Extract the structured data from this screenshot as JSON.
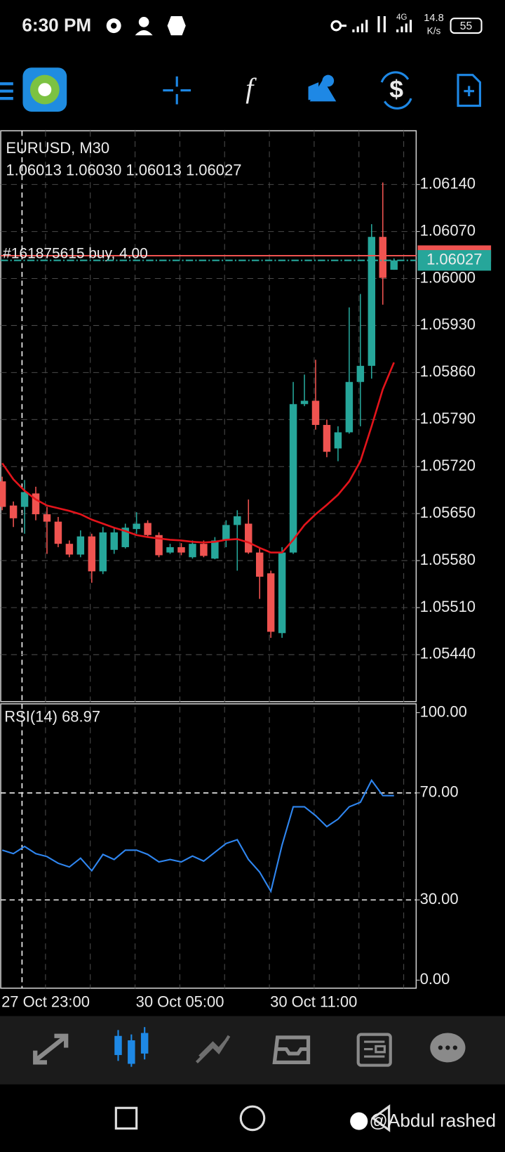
{
  "status_bar": {
    "time": "6:30 PM",
    "network": "4G",
    "speed": "14.8",
    "speed_unit": "K/s",
    "battery": "55"
  },
  "chart_data": [
    {
      "type": "candlestick",
      "title": "EURUSD, M30",
      "subtitle": "1.06013 1.06030 1.06013 1.06027",
      "categories": [
        "27 Oct 23:00",
        null,
        null,
        null,
        null,
        null,
        null,
        null,
        null,
        null,
        null,
        null,
        "30 Oct 05:00",
        null,
        null,
        null,
        null,
        null,
        null,
        null,
        null,
        null,
        null,
        null,
        "30 Oct 11:00",
        null,
        null,
        null,
        null,
        null,
        null,
        null,
        null,
        null,
        null,
        null
      ],
      "open": [
        1.05698,
        1.05662,
        1.0566,
        1.0568,
        1.05649,
        1.05638,
        1.05605,
        1.05589,
        1.05616,
        1.05564,
        1.05596,
        1.056,
        1.05627,
        1.05636,
        1.05618,
        1.05592,
        1.056,
        1.05585,
        1.05605,
        1.05583,
        1.0561,
        1.05633,
        1.05635,
        1.05592,
        1.05561,
        1.05472,
        1.05592,
        1.05813,
        1.05818,
        1.05782,
        1.05747,
        1.05771,
        1.05846,
        1.0587,
        1.06062,
        1.06013
      ],
      "high": [
        1.05705,
        1.05668,
        1.057,
        1.0569,
        1.0566,
        1.05645,
        1.0561,
        1.05625,
        1.0562,
        1.0563,
        1.0563,
        1.05635,
        1.05652,
        1.0564,
        1.05622,
        1.05605,
        1.05606,
        1.0561,
        1.0561,
        1.05615,
        1.0564,
        1.05655,
        1.05671,
        1.056,
        1.05565,
        1.056,
        1.05846,
        1.05857,
        1.05879,
        1.0579,
        1.0578,
        1.05957,
        1.05977,
        1.06081,
        1.06143,
        1.0603
      ],
      "low": [
        1.05655,
        1.0563,
        1.0562,
        1.0564,
        1.0559,
        1.056,
        1.05585,
        1.05585,
        1.05547,
        1.0556,
        1.0559,
        1.05598,
        1.0562,
        1.05615,
        1.05585,
        1.0559,
        1.05588,
        1.05583,
        1.05585,
        1.05582,
        1.056,
        1.05565,
        1.0559,
        1.05523,
        1.05465,
        1.05465,
        1.0559,
        1.0581,
        1.05775,
        1.05734,
        1.05728,
        1.05769,
        1.0578,
        1.05851,
        1.05961,
        1.06013
      ],
      "close": [
        1.0566,
        1.05643,
        1.05682,
        1.05649,
        1.05638,
        1.05605,
        1.05589,
        1.05616,
        1.05564,
        1.05622,
        1.05622,
        1.05629,
        1.05635,
        1.05618,
        1.05588,
        1.056,
        1.05592,
        1.05605,
        1.05587,
        1.0561,
        1.05633,
        1.05646,
        1.05592,
        1.05556,
        1.05474,
        1.05592,
        1.05813,
        1.05818,
        1.05782,
        1.05742,
        1.05771,
        1.05846,
        1.0587,
        1.06062,
        1.06001,
        1.06027
      ],
      "up_color": "#26a69a",
      "down_color": "#ef5350",
      "ma": {
        "color": "#e3141b",
        "values": [
          1.05725,
          1.05701,
          1.05684,
          1.05671,
          1.05662,
          1.05658,
          1.05654,
          1.05649,
          1.05641,
          1.05635,
          1.05629,
          1.05624,
          1.05618,
          1.05615,
          1.05613,
          1.05611,
          1.0561,
          1.05608,
          1.05607,
          1.05608,
          1.05611,
          1.05612,
          1.05607,
          1.05599,
          1.05592,
          1.05592,
          1.05611,
          1.05633,
          1.05649,
          1.05663,
          1.05678,
          1.05698,
          1.05728,
          1.0578,
          1.05835,
          1.05875
        ]
      },
      "ylim": [
        1.0537,
        1.0622
      ],
      "yticks": [
        {
          "value": 1.0614,
          "label": "1.06140"
        },
        {
          "value": 1.0607,
          "label": "1.06070"
        },
        {
          "value": 1.06,
          "label": "1.06000"
        },
        {
          "value": 1.0593,
          "label": "1.05930"
        },
        {
          "value": 1.0586,
          "label": "1.05860"
        },
        {
          "value": 1.0579,
          "label": "1.05790"
        },
        {
          "value": 1.0572,
          "label": "1.05720"
        },
        {
          "value": 1.0565,
          "label": "1.05650"
        },
        {
          "value": 1.0558,
          "label": "1.05580"
        },
        {
          "value": 1.0551,
          "label": "1.05510"
        },
        {
          "value": 1.0544,
          "label": "1.05440"
        }
      ],
      "grid": true,
      "current_price": 1.06027,
      "order": {
        "label": "#161875615 buy, 4.00",
        "price": 1.06034
      }
    },
    {
      "type": "line",
      "title": "RSI(14) 68.97",
      "color": "#2f86f0",
      "values": [
        48.6,
        47.3,
        50.0,
        47.3,
        46.2,
        43.7,
        42.3,
        45.6,
        40.9,
        47.0,
        45.1,
        48.6,
        48.6,
        47.0,
        44.2,
        45.1,
        44.2,
        46.4,
        44.5,
        47.8,
        51.1,
        52.5,
        45.1,
        40.4,
        33.2,
        50.5,
        64.8,
        64.8,
        61.5,
        57.4,
        60.2,
        64.8,
        66.5,
        74.7,
        69.0,
        68.97
      ],
      "ylim": [
        -3,
        103.3
      ],
      "yticks": [
        {
          "value": 100,
          "label": "100.00"
        },
        {
          "value": 70,
          "label": "70.00"
        },
        {
          "value": 30,
          "label": "30.00"
        },
        {
          "value": 0,
          "label": "0.00"
        }
      ],
      "levels": [
        70,
        30
      ]
    }
  ],
  "watermark": "@Abdul rashed"
}
